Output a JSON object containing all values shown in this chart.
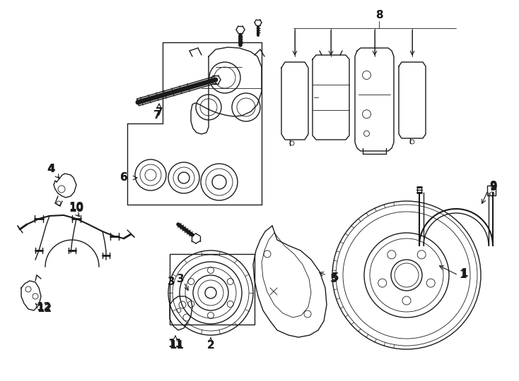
{
  "background_color": "#ffffff",
  "line_color": "#1a1a1a",
  "lw": 1.0,
  "tlw": 0.6,
  "label_fontsize": 11,
  "fig_width": 7.34,
  "fig_height": 5.4,
  "dpi": 100
}
